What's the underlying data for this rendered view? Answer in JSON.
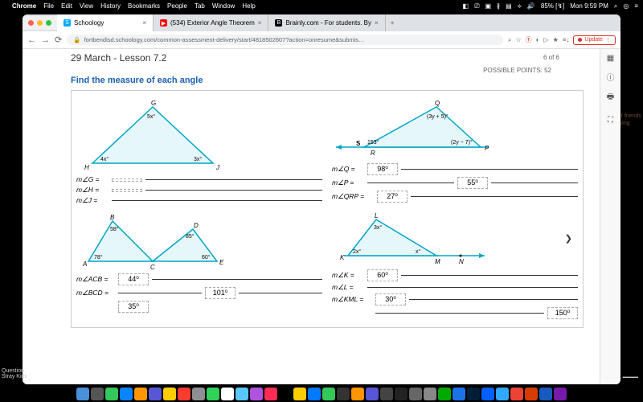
{
  "menubar": {
    "app": "Chrome",
    "items": [
      "File",
      "Edit",
      "View",
      "History",
      "Bookmarks",
      "People",
      "Tab",
      "Window",
      "Help"
    ],
    "battery": "85% [↯]",
    "clock": "Mon 9:59 PM"
  },
  "tabs": [
    {
      "title": "Schoology",
      "favicon_bg": "#0af",
      "favicon_text": "S",
      "active": true
    },
    {
      "title": "(534) Exterior Angle Theorem",
      "favicon_bg": "#f00",
      "favicon_text": "▶",
      "active": false
    },
    {
      "title": "Brainly.com - For students. By",
      "favicon_bg": "#000",
      "favicon_text": "B",
      "active": false
    }
  ],
  "url": "fortbendisd.schoology.com/common-assessment-delivery/start/4818502607?action=onresume&submis…",
  "update_label": "Update",
  "page": {
    "lesson": "29 March - Lesson 7.2",
    "pager": "6 of 6",
    "points": "POSSIBLE POINTS: 52",
    "instruction": "Find the measure of each angle"
  },
  "p1": {
    "labels": {
      "G": "G",
      "H": "H",
      "J": "J",
      "top": "5x°",
      "left": "4x°",
      "right": "3x°"
    },
    "rows": [
      {
        "lbl": "m∠G =",
        "val": ""
      },
      {
        "lbl": "m∠H =",
        "val": ""
      },
      {
        "lbl": "m∠J =",
        "val": ""
      }
    ],
    "colors": {
      "stroke": "#00a6c7",
      "fill": "none"
    }
  },
  "p2": {
    "labels": {
      "Q": "Q",
      "S": "S",
      "R": "R",
      "P": "P",
      "s_ang": "153°",
      "top": "(3y + 5)°",
      "right": "(2y − 7)°"
    },
    "rows": [
      {
        "lbl": "m∠Q =",
        "val": "98⁰"
      },
      {
        "lbl": "m∠P =",
        "val": "55⁰"
      },
      {
        "lbl": "m∠QRP =",
        "val": "27⁰"
      }
    ]
  },
  "p3": {
    "labels": {
      "A": "A",
      "B": "B",
      "C": "C",
      "D": "D",
      "E": "E",
      "b": "58°",
      "a": "78°",
      "d": "85°",
      "e": "60°"
    },
    "rows": [
      {
        "lbl": "m∠ACB =",
        "val": "44⁰"
      },
      {
        "lbl": "m∠BCD =",
        "val": "101⁰"
      },
      {
        "lbl": "",
        "val": "35⁰"
      }
    ]
  },
  "p4": {
    "labels": {
      "K": "K",
      "L": "L",
      "M": "M",
      "N": "N",
      "top": "3x°",
      "left": "2x°",
      "mid": "x°"
    },
    "rows": [
      {
        "lbl": "m∠K =",
        "val": "60⁰"
      },
      {
        "lbl": "m∠L =",
        "val": ""
      },
      {
        "lbl": "m∠KML =",
        "val": "30⁰"
      },
      {
        "lbl": "",
        "val": "150⁰"
      }
    ]
  },
  "dock_colors": [
    "#4a90d9",
    "#555",
    "#34c759",
    "#0a84ff",
    "#ff9500",
    "#5856d6",
    "#ffcc00",
    "#ff3b30",
    "#8e8e93",
    "#30d158",
    "#fff",
    "#5ac8fa",
    "#af52de",
    "#ff2d55",
    "#000",
    "#ffcc00",
    "#007aff",
    "#34c759",
    "#333",
    "#ff9500",
    "#5856d6",
    "#444",
    "#222",
    "#666",
    "#888",
    "#0a0",
    "#1a73e8",
    "#001e36",
    "#0061ff",
    "#31a8ff",
    "#ea4335",
    "#d83b01",
    "#185abd",
    "#7719aa"
  ],
  "question_label": "Question",
  "stray_label": "Stray Kids"
}
